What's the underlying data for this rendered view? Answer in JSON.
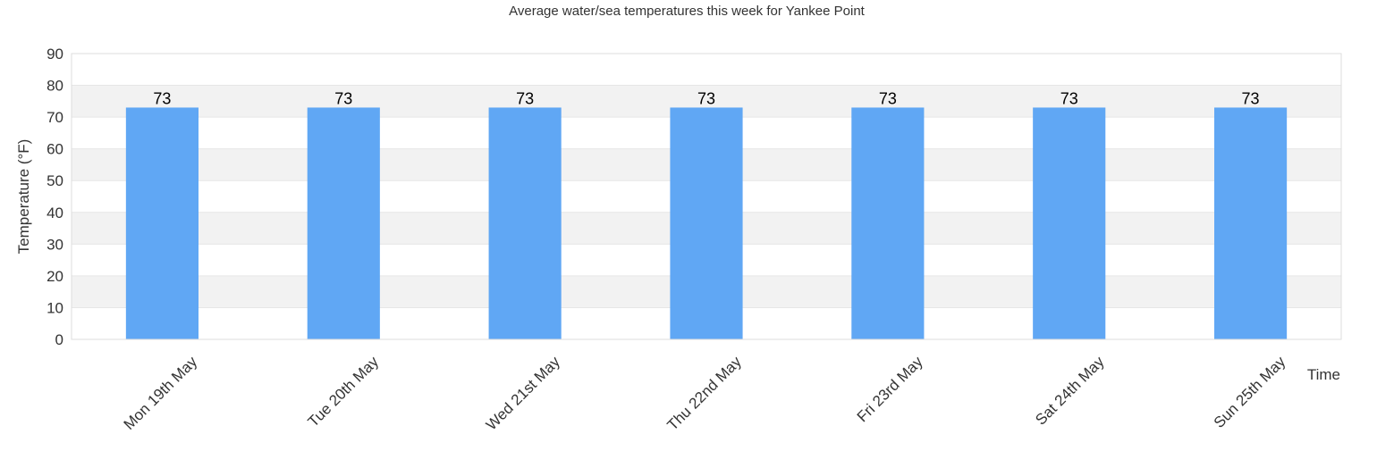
{
  "chart_data": {
    "type": "bar",
    "title": "Average water/sea temperatures this week for Yankee Point",
    "xlabel": "Time",
    "ylabel": "Temperature (°F)",
    "categories": [
      "Mon 19th May",
      "Tue 20th May",
      "Wed 21st May",
      "Thu 22nd May",
      "Fri 23rd May",
      "Sat 24th May",
      "Sun 25th May"
    ],
    "values": [
      73,
      73,
      73,
      73,
      73,
      73,
      73
    ],
    "ylim": [
      0,
      90
    ],
    "yticks": [
      0,
      10,
      20,
      30,
      40,
      50,
      60,
      70,
      80,
      90
    ],
    "grid": true,
    "bar_color": "#60a7f4",
    "band_color": "#f2f2f2",
    "show_data_labels": true
  }
}
